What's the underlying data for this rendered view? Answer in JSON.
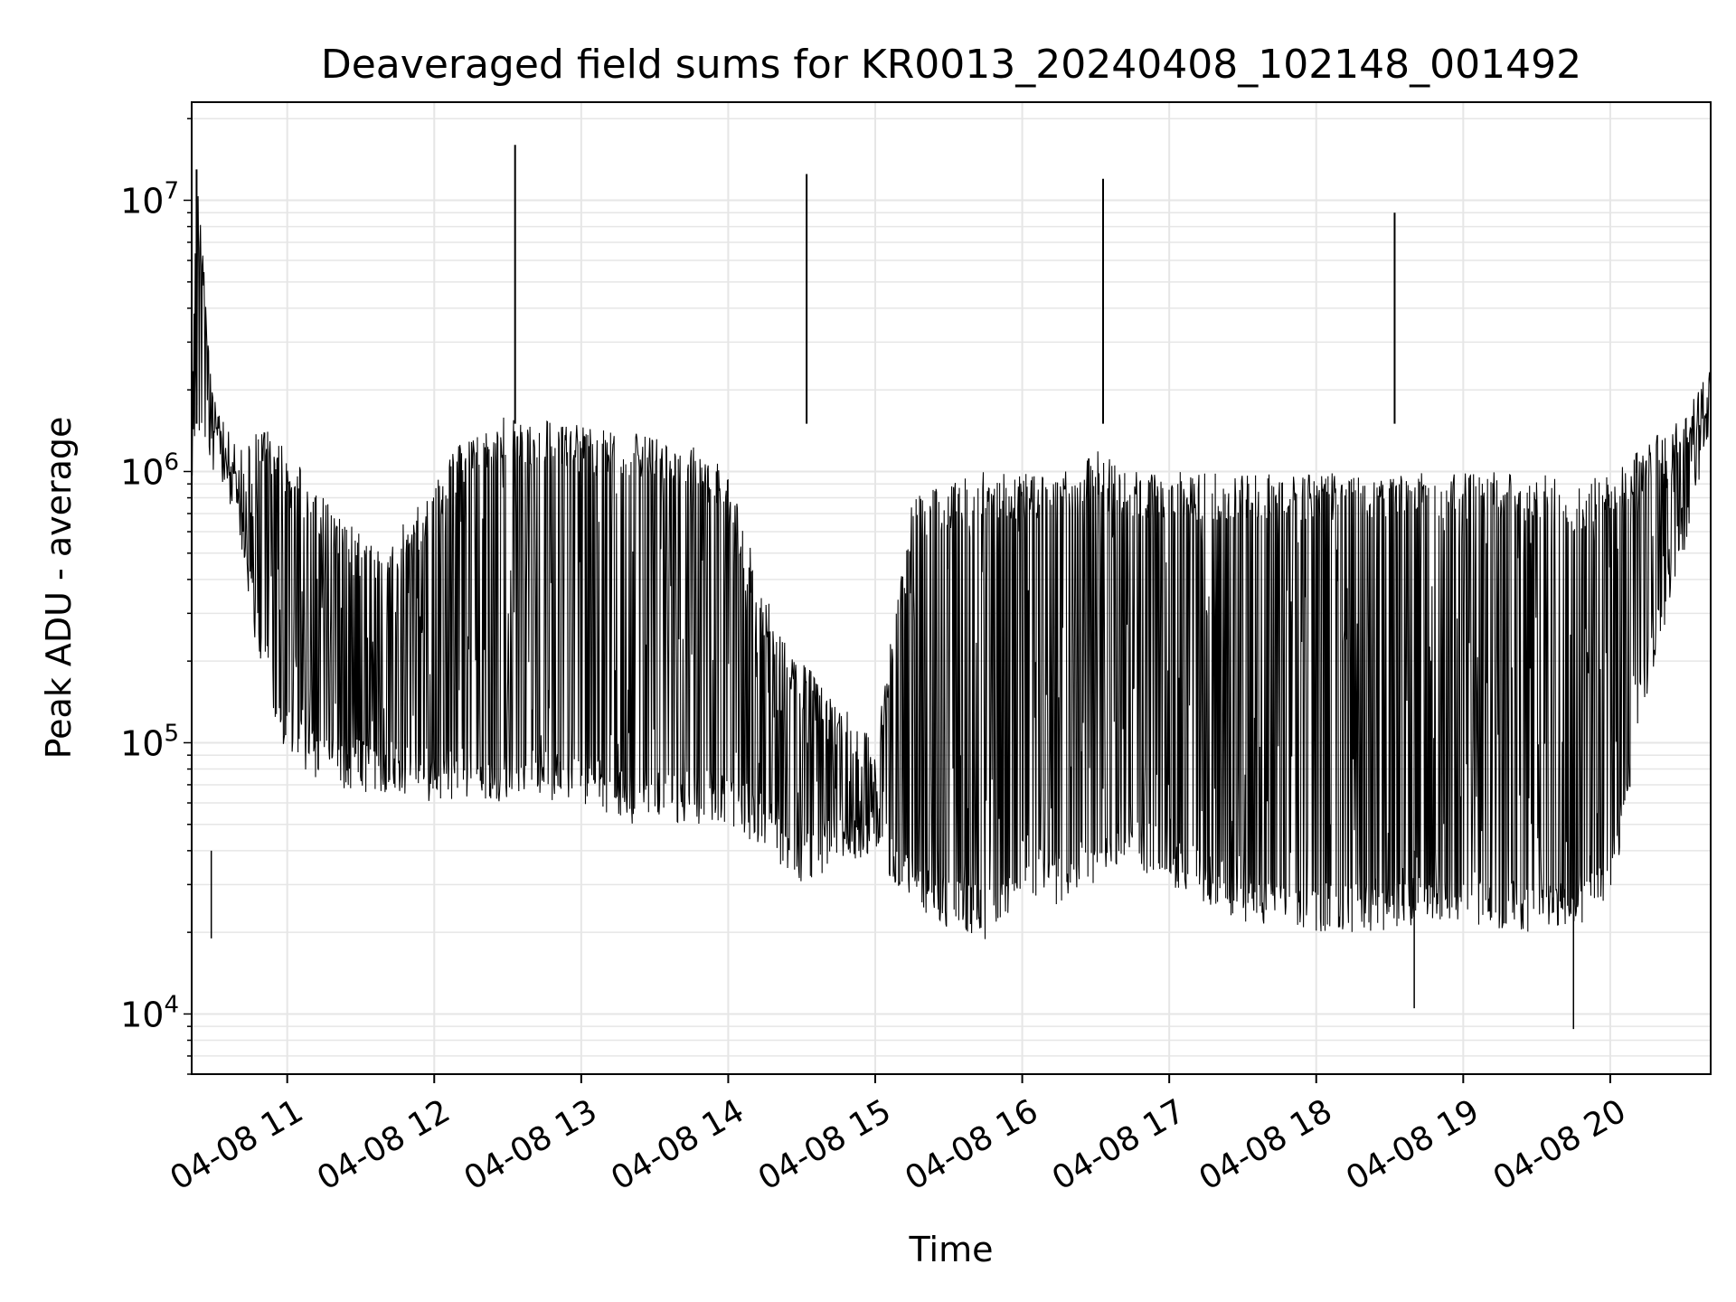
{
  "chart_data": {
    "type": "line",
    "title": "Deaveraged field sums for KR0013_20240408_102148_001492",
    "xlabel": "Time",
    "ylabel": "Peak ADU - average",
    "xscale": "time",
    "yscale": "log",
    "xlim": [
      "04-08 10:21",
      "04-08 20:41"
    ],
    "ylim": [
      6000,
      23000000
    ],
    "x_ticks": [
      "04-08 11",
      "04-08 12",
      "04-08 13",
      "04-08 14",
      "04-08 15",
      "04-08 16",
      "04-08 17",
      "04-08 18",
      "04-08 19",
      "04-08 20"
    ],
    "y_ticks": [
      {
        "value": 10000,
        "label": "10",
        "exponent": "4"
      },
      {
        "value": 100000,
        "label": "10",
        "exponent": "5"
      },
      {
        "value": 1000000,
        "label": "10",
        "exponent": "6"
      },
      {
        "value": 10000000,
        "label": "10",
        "exponent": "7"
      }
    ],
    "grid": true,
    "line_color": "#000000",
    "grid_color": "#e6e6e6",
    "series": [
      {
        "time": [
          "04-08 10:21",
          "04-08 10:23",
          "04-08 10:30",
          "04-08 10:40",
          "04-08 10:50",
          "04-08 11:00",
          "04-08 11:15",
          "04-08 11:30",
          "04-08 11:45",
          "04-08 12:00",
          "04-08 12:15",
          "04-08 12:30",
          "04-08 12:45",
          "04-08 13:00",
          "04-08 13:15",
          "04-08 13:30",
          "04-08 13:45",
          "04-08 14:00",
          "04-08 14:15",
          "04-08 14:30",
          "04-08 14:45",
          "04-08 15:00",
          "04-08 15:15",
          "04-08 15:30",
          "04-08 15:45",
          "04-08 16:00",
          "04-08 16:15",
          "04-08 16:30",
          "04-08 16:45",
          "04-08 17:00",
          "04-08 17:15",
          "04-08 17:30",
          "04-08 17:45",
          "04-08 18:00",
          "04-08 18:15",
          "04-08 18:30",
          "04-08 18:45",
          "04-08 19:00",
          "04-08 19:15",
          "04-08 19:30",
          "04-08 19:45",
          "04-08 20:00",
          "04-08 20:15",
          "04-08 20:30",
          "04-08 20:41"
        ],
        "upper": [
          2000000,
          13000000,
          2000000,
          1200000,
          1500000,
          1200000,
          800000,
          600000,
          600000,
          900000,
          1500000,
          1600000,
          1600000,
          1500000,
          1400000,
          1400000,
          1300000,
          1000000,
          350000,
          200000,
          150000,
          100000,
          800000,
          900000,
          1000000,
          1000000,
          1000000,
          1200000,
          1000000,
          1000000,
          1000000,
          1000000,
          1000000,
          1000000,
          1000000,
          1000000,
          1000000,
          1000000,
          1000000,
          1000000,
          900000,
          1000000,
          1300000,
          1600000,
          2400000
        ],
        "lower": [
          900000,
          1500000,
          1000000,
          600000,
          150000,
          90000,
          70000,
          65000,
          65000,
          60000,
          60000,
          60000,
          60000,
          60000,
          50000,
          50000,
          50000,
          50000,
          40000,
          30000,
          35000,
          38000,
          25000,
          20000,
          18000,
          28000,
          25000,
          30000,
          35000,
          30000,
          25000,
          22000,
          20000,
          20000,
          20000,
          20000,
          22000,
          22000,
          20000,
          20000,
          20000,
          25000,
          150000,
          500000,
          1500000
        ]
      }
    ],
    "spikes": [
      {
        "time": "04-08 10:23",
        "value": 13000000
      },
      {
        "time": "04-08 12:33",
        "value": 16000000
      },
      {
        "time": "04-08 14:32",
        "value": 12500000
      },
      {
        "time": "04-08 16:33",
        "value": 12000000
      },
      {
        "time": "04-08 18:32",
        "value": 9000000
      }
    ],
    "dips": [
      {
        "time": "04-08 10:29",
        "value": 19000
      },
      {
        "time": "04-08 18:40",
        "value": 10500
      },
      {
        "time": "04-08 19:45",
        "value": 8800
      }
    ]
  }
}
